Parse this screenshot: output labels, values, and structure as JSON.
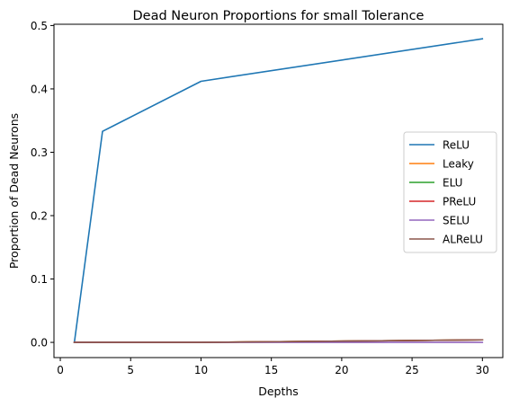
{
  "chart_data": {
    "type": "line",
    "title": "Dead Neuron Proportions for small Tolerance",
    "xlabel": "Depths",
    "ylabel": "Proportion of Dead Neurons",
    "x": [
      1,
      3,
      10,
      30
    ],
    "xlim": [
      -0.45,
      31.45
    ],
    "ylim": [
      -0.024,
      0.502
    ],
    "xticks": [
      0,
      5,
      10,
      15,
      20,
      25,
      30
    ],
    "yticks": [
      0.0,
      0.1,
      0.2,
      0.3,
      0.4,
      0.5
    ],
    "xtick_labels": [
      "0",
      "5",
      "10",
      "15",
      "20",
      "25",
      "30"
    ],
    "ytick_labels": [
      "0.0",
      "0.1",
      "0.2",
      "0.3",
      "0.4",
      "0.5"
    ],
    "grid": false,
    "legend_position": "center-right",
    "series": [
      {
        "name": "ReLU",
        "color": "#1f77b4",
        "values": [
          0.0,
          0.333,
          0.412,
          0.479
        ]
      },
      {
        "name": "Leaky",
        "color": "#ff7f0e",
        "values": [
          0.0,
          0.0,
          0.0,
          0.004
        ]
      },
      {
        "name": "ELU",
        "color": "#2ca02c",
        "values": [
          0.0,
          0.0,
          0.0,
          0.004
        ]
      },
      {
        "name": "PReLU",
        "color": "#d62728",
        "values": [
          0.0,
          0.0,
          0.0,
          0.004
        ]
      },
      {
        "name": "SELU",
        "color": "#9467bd",
        "values": [
          0.0,
          0.0,
          0.0,
          0.0
        ]
      },
      {
        "name": "ALReLU",
        "color": "#8c564b",
        "values": [
          0.0,
          0.0,
          0.0,
          0.004
        ]
      }
    ]
  }
}
